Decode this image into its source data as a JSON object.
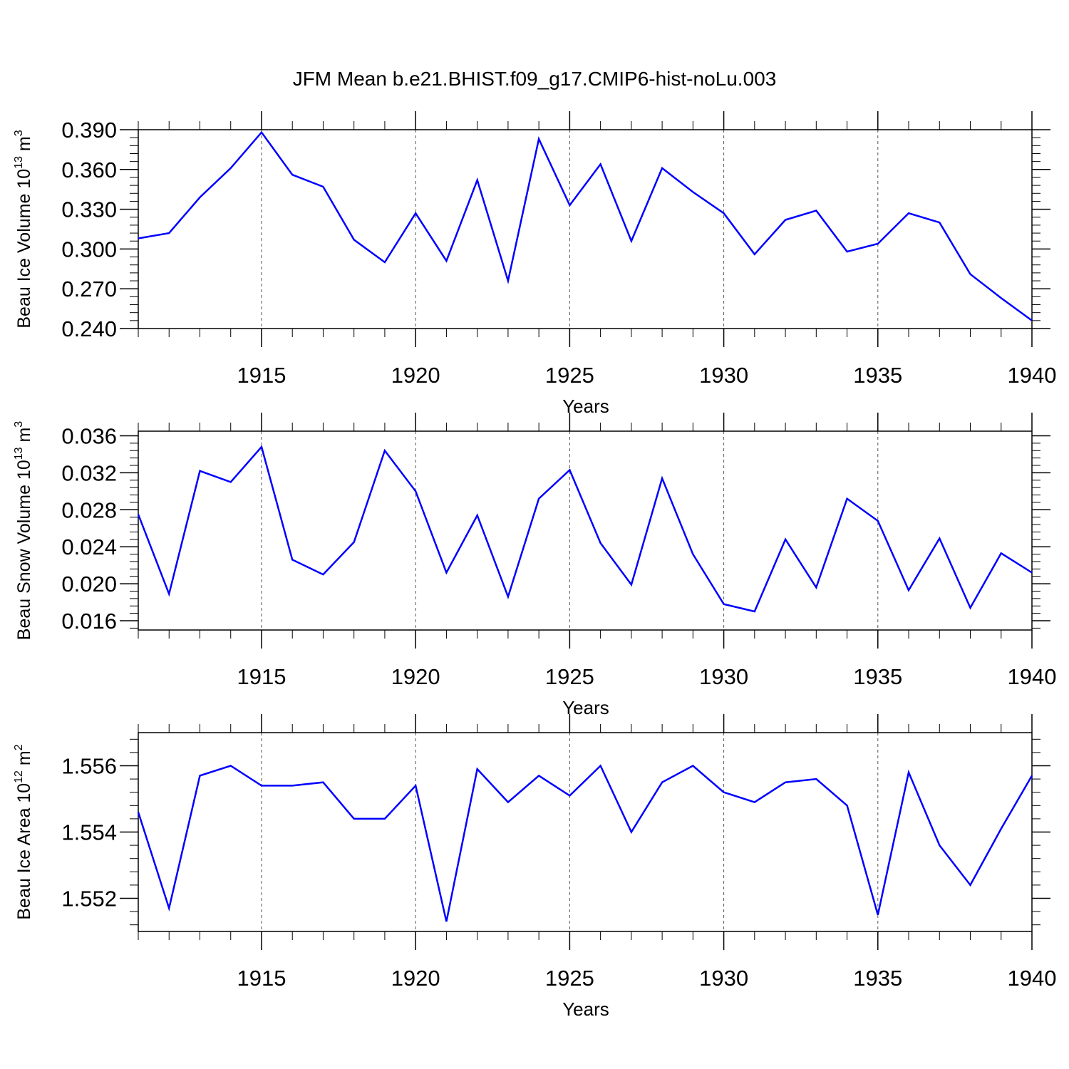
{
  "title": "JFM Mean b.e21.BHIST.f09_g17.CMIP6-hist-noLu.003",
  "colors": {
    "line": "#0000ff",
    "axis": "#000000",
    "grid": "#555555"
  },
  "chart_data": [
    {
      "type": "line",
      "ylabel": {
        "text": "Beau Ice Volume 10",
        "exp": "13",
        "unit": " m",
        "unit_exp": "3"
      },
      "xlabel": "Years",
      "xlim": [
        1911,
        1940
      ],
      "ylim": [
        0.24,
        0.39
      ],
      "yticks": [
        0.24,
        0.27,
        0.3,
        0.33,
        0.36,
        0.39
      ],
      "ytick_labels": [
        "0.240",
        "0.270",
        "0.300",
        "0.330",
        "0.360",
        "0.390"
      ],
      "xticks": [
        1915,
        1920,
        1925,
        1930,
        1935,
        1940
      ],
      "xtick_labels": [
        "1915",
        "1920",
        "1925",
        "1930",
        "1935",
        "1940"
      ],
      "grid": "vertical dashed at major x ticks",
      "x": [
        1911,
        1912,
        1913,
        1914,
        1915,
        1916,
        1917,
        1918,
        1919,
        1920,
        1921,
        1922,
        1923,
        1924,
        1925,
        1926,
        1927,
        1928,
        1929,
        1930,
        1931,
        1932,
        1933,
        1934,
        1935,
        1936,
        1937,
        1938,
        1939,
        1940
      ],
      "values": [
        0.308,
        0.312,
        0.339,
        0.361,
        0.388,
        0.356,
        0.347,
        0.307,
        0.29,
        0.327,
        0.291,
        0.352,
        0.276,
        0.383,
        0.333,
        0.364,
        0.306,
        0.361,
        0.343,
        0.327,
        0.296,
        0.322,
        0.329,
        0.298,
        0.304,
        0.327,
        0.32,
        0.281,
        0.263,
        0.246
      ]
    },
    {
      "type": "line",
      "ylabel": {
        "text": "Beau Snow Volume 10",
        "exp": "13",
        "unit": " m",
        "unit_exp": "3"
      },
      "xlabel": "Years",
      "xlim": [
        1911,
        1940
      ],
      "ylim": [
        0.015,
        0.0365
      ],
      "yticks": [
        0.016,
        0.02,
        0.024,
        0.028,
        0.032,
        0.036
      ],
      "ytick_labels": [
        "0.016",
        "0.020",
        "0.024",
        "0.028",
        "0.032",
        "0.036"
      ],
      "xticks": [
        1915,
        1920,
        1925,
        1930,
        1935,
        1940
      ],
      "xtick_labels": [
        "1915",
        "1920",
        "1925",
        "1930",
        "1935",
        "1940"
      ],
      "grid": "vertical dashed at major x ticks",
      "x": [
        1911,
        1912,
        1913,
        1914,
        1915,
        1916,
        1917,
        1918,
        1919,
        1920,
        1921,
        1922,
        1923,
        1924,
        1925,
        1926,
        1927,
        1928,
        1929,
        1930,
        1931,
        1932,
        1933,
        1934,
        1935,
        1936,
        1937,
        1938,
        1939,
        1940
      ],
      "values": [
        0.0275,
        0.0189,
        0.0322,
        0.031,
        0.0348,
        0.0226,
        0.021,
        0.0245,
        0.0344,
        0.03,
        0.0212,
        0.0274,
        0.0186,
        0.0292,
        0.0323,
        0.0244,
        0.0199,
        0.0314,
        0.0232,
        0.0178,
        0.017,
        0.0248,
        0.0196,
        0.0292,
        0.0268,
        0.0193,
        0.0249,
        0.0174,
        0.0233,
        0.0212
      ]
    },
    {
      "type": "line",
      "ylabel": {
        "text": "Beau Ice Area 10",
        "exp": "12",
        "unit": " m",
        "unit_exp": "2"
      },
      "xlabel": "Years",
      "xlim": [
        1911,
        1940
      ],
      "ylim": [
        1.551,
        1.557
      ],
      "yticks": [
        1.552,
        1.554,
        1.556
      ],
      "ytick_labels": [
        "1.552",
        "1.554",
        "1.556"
      ],
      "xticks": [
        1915,
        1920,
        1925,
        1930,
        1935,
        1940
      ],
      "xtick_labels": [
        "1915",
        "1920",
        "1925",
        "1930",
        "1935",
        "1940"
      ],
      "grid": "vertical dashed at major x ticks",
      "x": [
        1911,
        1912,
        1913,
        1914,
        1915,
        1916,
        1917,
        1918,
        1919,
        1920,
        1921,
        1922,
        1923,
        1924,
        1925,
        1926,
        1927,
        1928,
        1929,
        1930,
        1931,
        1932,
        1933,
        1934,
        1935,
        1936,
        1937,
        1938,
        1939,
        1940
      ],
      "values": [
        1.5546,
        1.5517,
        1.5557,
        1.556,
        1.5554,
        1.5554,
        1.5555,
        1.5544,
        1.5544,
        1.5554,
        1.5513,
        1.5559,
        1.5549,
        1.5557,
        1.5551,
        1.556,
        1.554,
        1.5555,
        1.556,
        1.5552,
        1.5549,
        1.5555,
        1.5556,
        1.5548,
        1.5515,
        1.5558,
        1.5536,
        1.5524,
        1.5541,
        1.5557
      ]
    }
  ]
}
